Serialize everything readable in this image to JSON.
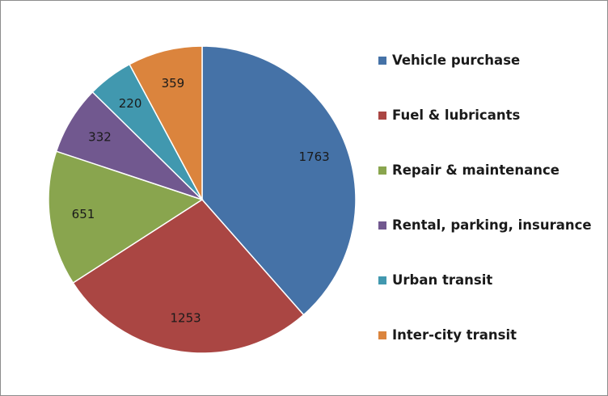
{
  "chart_data": {
    "type": "pie",
    "categories": [
      "Vehicle purchase",
      "Fuel & lubricants",
      "Repair & maintenance",
      "Rental, parking, insurance",
      "Urban transit",
      "Inter-city transit"
    ],
    "values": [
      1763,
      1253,
      651,
      332,
      220,
      359
    ],
    "value_labels": [
      "1763",
      "1253",
      "651",
      "332",
      "220",
      "359"
    ],
    "colors": [
      "#4572a7",
      "#aa4643",
      "#89a54e",
      "#71588f",
      "#4198af",
      "#db843d"
    ],
    "start_angle": "12 o'clock",
    "direction": "clockwise",
    "legend_position": "right",
    "title": ""
  }
}
